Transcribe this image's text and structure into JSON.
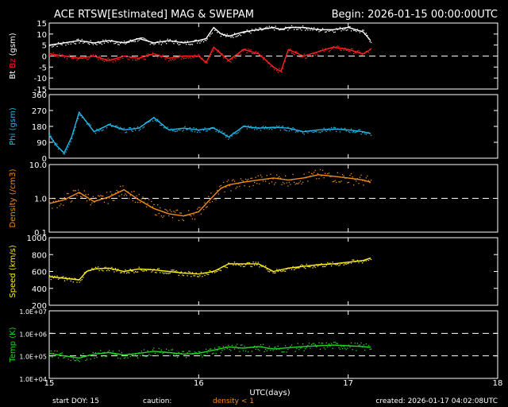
{
  "title": "ACE RTSW[Estimated] MAG & SWEPAM",
  "begin": "Begin: 2026-01-15 00:00:00UTC",
  "footer": {
    "start_doy": "start DOY:  15",
    "caution": "caution:",
    "density_note": "density < 1",
    "created": "created: 2026-01-17 04:02:08UTC"
  },
  "colors": {
    "bt": "#ffffff",
    "bz": "#ff2020",
    "phi": "#22b8e8",
    "density": "#f08c1a",
    "speed": "#ffee22",
    "temp": "#22d422"
  },
  "chart_data": {
    "type": "line",
    "xlabel": "UTC(days)",
    "xlim": [
      15,
      18
    ],
    "x_ticks": [
      "15",
      "16",
      "17",
      "18"
    ],
    "data_end_day": 17.15,
    "panels": [
      {
        "id": "mag",
        "ylabel_parts": [
          "Bt",
          "Bz",
          "(gsm)"
        ],
        "ylim": [
          -15,
          15
        ],
        "y_ticks": [
          "15",
          "10",
          "5",
          "0",
          "-5",
          "-10",
          "-15"
        ],
        "y_tick_values": [
          15,
          10,
          5,
          0,
          -5,
          -10,
          -15
        ],
        "dashed_at": [
          0
        ],
        "series": [
          {
            "name": "Bt",
            "color_key": "bt",
            "x": [
              15.0,
              15.1,
              15.2,
              15.3,
              15.4,
              15.5,
              15.6,
              15.7,
              15.8,
              15.9,
              16.0,
              16.05,
              16.1,
              16.15,
              16.2,
              16.3,
              16.4,
              16.5,
              16.55,
              16.6,
              16.7,
              16.8,
              16.9,
              17.0,
              17.1,
              17.15
            ],
            "values": [
              5,
              6,
              7,
              6,
              7,
              6,
              8,
              6,
              7,
              6,
              7,
              8,
              13,
              10,
              9,
              11,
              12,
              13,
              12,
              13,
              13,
              12,
              12,
              13,
              11,
              7
            ]
          },
          {
            "name": "Bz",
            "color_key": "bz",
            "x": [
              15.0,
              15.1,
              15.2,
              15.3,
              15.4,
              15.5,
              15.6,
              15.7,
              15.8,
              15.9,
              16.0,
              16.05,
              16.1,
              16.15,
              16.2,
              16.3,
              16.4,
              16.5,
              16.55,
              16.6,
              16.7,
              16.8,
              16.9,
              17.0,
              17.1,
              17.15
            ],
            "values": [
              1,
              0,
              -1,
              0,
              -2,
              0,
              -1,
              1,
              -1,
              0,
              0,
              -3,
              4,
              1,
              -2,
              3,
              1,
              -5,
              -7,
              3,
              0,
              2,
              4,
              3,
              1,
              3
            ]
          }
        ]
      },
      {
        "id": "phi",
        "ylabel_parts": [
          "Phi",
          "(gsm)"
        ],
        "ylim": [
          0,
          360
        ],
        "y_ticks": [
          "360",
          "270",
          "180",
          "90",
          "0"
        ],
        "y_tick_values": [
          360,
          270,
          180,
          90,
          0
        ],
        "dashed_at": [],
        "series": [
          {
            "name": "Phi",
            "color_key": "phi",
            "x": [
              15.0,
              15.05,
              15.1,
              15.15,
              15.2,
              15.3,
              15.4,
              15.5,
              15.6,
              15.7,
              15.8,
              15.9,
              16.0,
              16.1,
              16.2,
              16.3,
              16.4,
              16.5,
              16.6,
              16.7,
              16.8,
              16.9,
              17.0,
              17.1,
              17.15
            ],
            "values": [
              130,
              70,
              30,
              120,
              260,
              150,
              190,
              160,
              170,
              230,
              160,
              170,
              160,
              170,
              120,
              180,
              170,
              175,
              170,
              150,
              160,
              165,
              160,
              150,
              140
            ]
          }
        ]
      },
      {
        "id": "density",
        "ylabel_parts": [
          "Density",
          "(/cm3)"
        ],
        "scale": "log",
        "ylim": [
          0.1,
          10.0
        ],
        "y_ticks": [
          "10.0",
          "1.0",
          "0.1"
        ],
        "y_tick_values": [
          10.0,
          1.0,
          0.1
        ],
        "dashed_at": [
          1.0
        ],
        "series": [
          {
            "name": "Density",
            "color_key": "density",
            "x": [
              15.0,
              15.1,
              15.2,
              15.3,
              15.4,
              15.5,
              15.6,
              15.7,
              15.8,
              15.9,
              16.0,
              16.1,
              16.15,
              16.2,
              16.3,
              16.4,
              16.5,
              16.6,
              16.7,
              16.8,
              16.9,
              17.0,
              17.1,
              17.15
            ],
            "values": [
              0.7,
              0.9,
              1.5,
              0.8,
              1.1,
              1.8,
              0.9,
              0.5,
              0.35,
              0.3,
              0.4,
              1.2,
              2.0,
              2.5,
              3.0,
              3.5,
              4.0,
              3.5,
              4.0,
              5.0,
              4.5,
              4.0,
              3.5,
              3.0
            ]
          }
        ]
      },
      {
        "id": "speed",
        "ylabel_parts": [
          "Speed",
          "(km/s)"
        ],
        "ylim": [
          200,
          1000
        ],
        "y_ticks": [
          "1000",
          "800",
          "600",
          "400",
          "200"
        ],
        "y_tick_values": [
          1000,
          800,
          600,
          400,
          200
        ],
        "dashed_at": [],
        "series": [
          {
            "name": "Speed",
            "color_key": "speed",
            "x": [
              15.0,
              15.1,
              15.2,
              15.25,
              15.3,
              15.4,
              15.5,
              15.6,
              15.7,
              15.8,
              15.9,
              16.0,
              16.1,
              16.2,
              16.3,
              16.4,
              16.5,
              16.6,
              16.7,
              16.8,
              16.9,
              17.0,
              17.1,
              17.15
            ],
            "values": [
              540,
              520,
              500,
              600,
              630,
              640,
              600,
              630,
              620,
              600,
              580,
              570,
              600,
              690,
              690,
              690,
              600,
              640,
              660,
              680,
              690,
              710,
              730,
              760
            ]
          }
        ]
      },
      {
        "id": "temp",
        "ylabel_parts": [
          "Temp",
          "(K)"
        ],
        "scale": "log",
        "ylim": [
          10000,
          10000000
        ],
        "y_ticks": [
          "1.0E+07",
          "1.0E+06",
          "1.0E+05",
          "1.0E+04"
        ],
        "y_tick_values": [
          10000000,
          1000000,
          100000,
          10000
        ],
        "dashed_at": [
          1000000,
          100000
        ],
        "series": [
          {
            "name": "Temp",
            "color_key": "temp",
            "x": [
              15.0,
              15.1,
              15.2,
              15.3,
              15.4,
              15.5,
              15.6,
              15.7,
              15.8,
              15.9,
              16.0,
              16.1,
              16.2,
              16.3,
              16.4,
              16.5,
              16.6,
              16.7,
              16.8,
              16.9,
              17.0,
              17.1,
              17.15
            ],
            "values": [
              130000,
              100000,
              80000,
              120000,
              140000,
              110000,
              130000,
              160000,
              140000,
              120000,
              130000,
              180000,
              250000,
              220000,
              260000,
              200000,
              230000,
              260000,
              280000,
              300000,
              280000,
              260000,
              240000
            ]
          }
        ]
      }
    ]
  }
}
